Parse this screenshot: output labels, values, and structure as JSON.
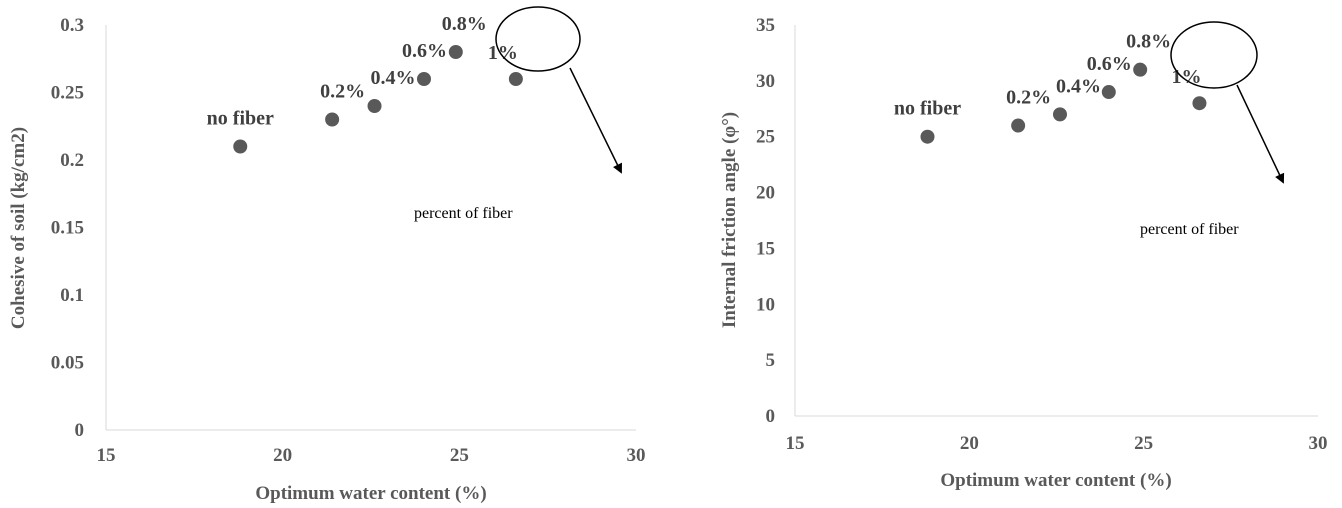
{
  "chart_data": [
    {
      "type": "scatter",
      "xlabel": "Optimum water content (%)",
      "ylabel": "Cohesive of soil (kg/cm2)",
      "xlim": [
        15,
        30
      ],
      "ylim": [
        0,
        0.3
      ],
      "x_ticks": [
        "15",
        "20",
        "25",
        "30"
      ],
      "y_ticks": [
        "0",
        "0.05",
        "0.1",
        "0.15",
        "0.2",
        "0.25",
        "0.3"
      ],
      "grid": false,
      "points": [
        {
          "x": 18.8,
          "y": 0.21,
          "label": "no fiber"
        },
        {
          "x": 21.4,
          "y": 0.23,
          "label": "0.2%"
        },
        {
          "x": 22.6,
          "y": 0.24,
          "label": "0.4%"
        },
        {
          "x": 24.0,
          "y": 0.26,
          "label": "0.6%"
        },
        {
          "x": 24.9,
          "y": 0.28,
          "label": "0.8%"
        },
        {
          "x": 26.6,
          "y": 0.26,
          "label": "1%"
        }
      ],
      "annotation": "percent of fiber"
    },
    {
      "type": "scatter",
      "xlabel": "Optimum water content (%)",
      "ylabel": "Internal friction angle (φ°)",
      "xlim": [
        15,
        30
      ],
      "ylim": [
        0,
        35
      ],
      "x_ticks": [
        "15",
        "20",
        "25",
        "30"
      ],
      "y_ticks": [
        "0",
        "5",
        "10",
        "15",
        "20",
        "25",
        "30",
        "35"
      ],
      "grid": false,
      "points": [
        {
          "x": 18.8,
          "y": 25,
          "label": "no fiber"
        },
        {
          "x": 21.4,
          "y": 26,
          "label": "0.2%"
        },
        {
          "x": 22.6,
          "y": 27,
          "label": "0.4%"
        },
        {
          "x": 24.0,
          "y": 29,
          "label": "0.6%"
        },
        {
          "x": 24.9,
          "y": 31,
          "label": "0.8%"
        },
        {
          "x": 26.6,
          "y": 28,
          "label": "1%"
        }
      ],
      "annotation": "percent of fiber"
    }
  ],
  "colors": {
    "marker": "#595959",
    "axis": "#d9d9d9",
    "text": "#595959",
    "point_label": "#404040",
    "annotation": "#000000"
  }
}
